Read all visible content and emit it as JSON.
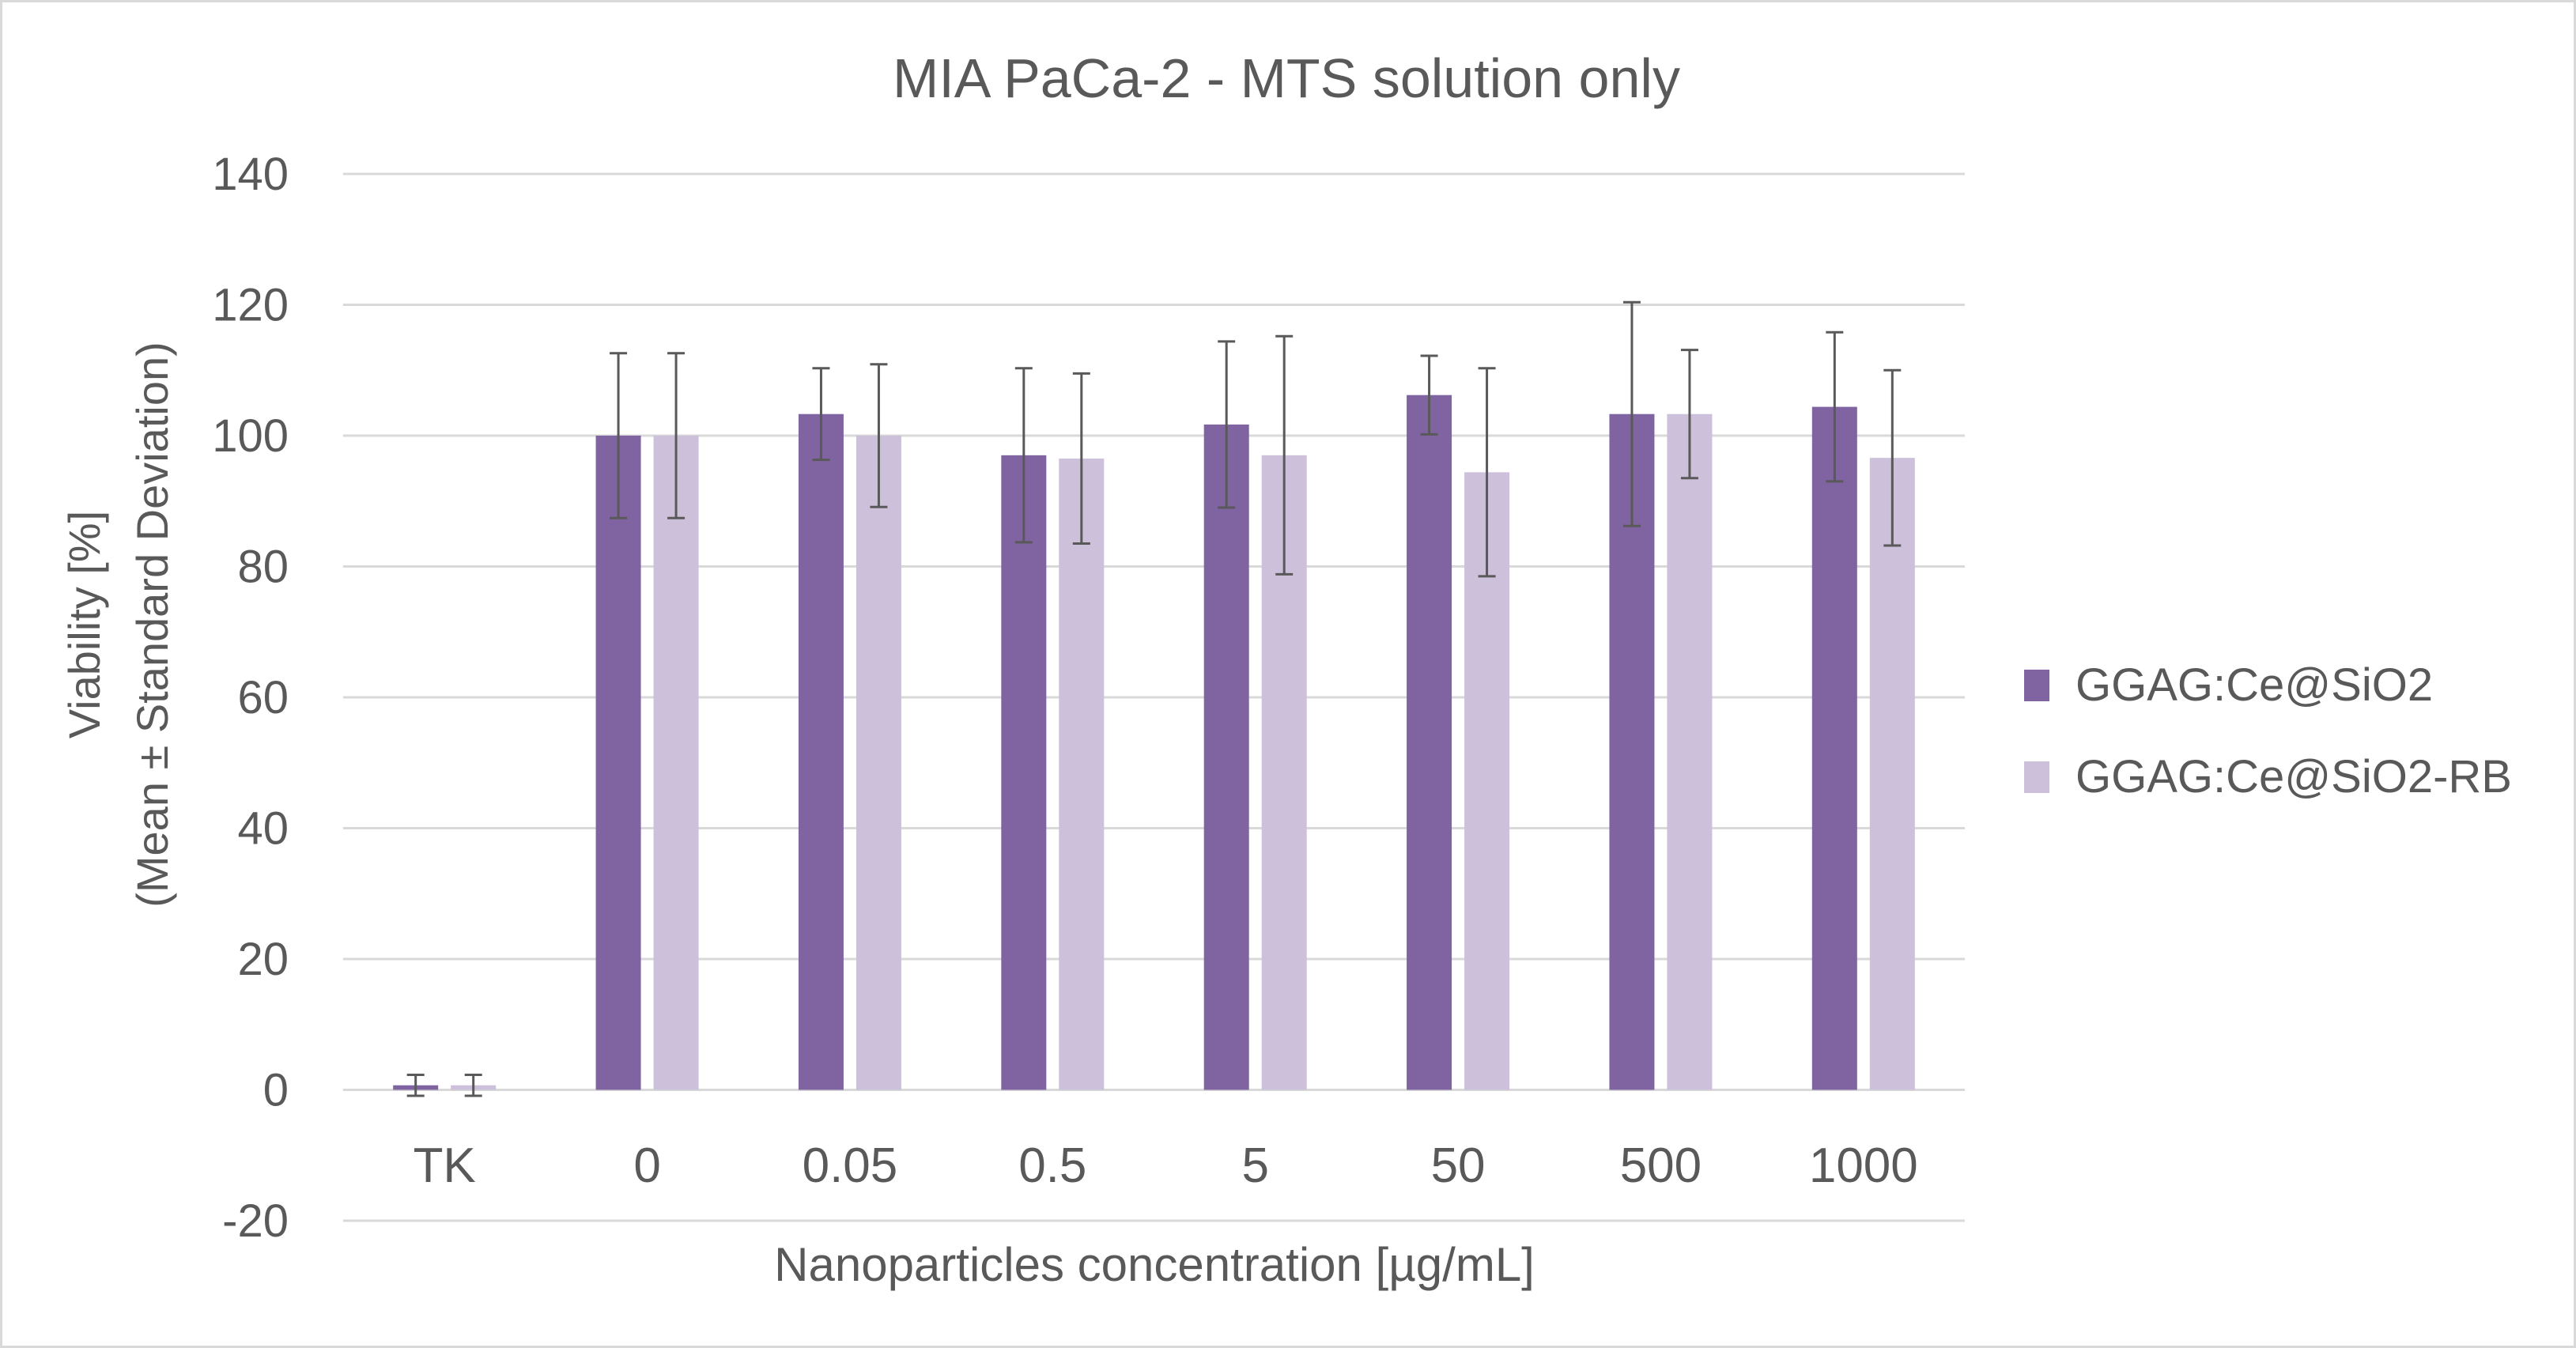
{
  "chart_data": {
    "type": "bar",
    "title": "MIA PaCa-2 - MTS solution only",
    "xlabel": "Nanoparticles concentration [µg/mL]",
    "ylabel_lines": [
      "Viability [%]",
      "(Mean ± Standard Deviation)"
    ],
    "categories": [
      "TK",
      "0",
      "0.05",
      "0.5",
      "5",
      "50",
      "500",
      "1000"
    ],
    "ylim": [
      -20,
      140
    ],
    "yticks": [
      -20,
      0,
      20,
      40,
      60,
      80,
      100,
      120,
      140
    ],
    "grid": true,
    "legend_position": "right",
    "series": [
      {
        "name": "GGAG:Ce@SiO2",
        "color": "#8064A2",
        "values": [
          0.7,
          100,
          103.3,
          97.0,
          101.7,
          106.2,
          103.3,
          104.4
        ],
        "errors": [
          1.6,
          12.6,
          7.0,
          13.3,
          12.7,
          6.0,
          17.1,
          11.4
        ]
      },
      {
        "name": "GGAG:Ce@SiO2-RB",
        "color": "#CCC0DA",
        "values": [
          0.7,
          100,
          100,
          96.5,
          97.0,
          94.4,
          103.3,
          96.6
        ],
        "errors": [
          1.6,
          12.6,
          10.9,
          13.0,
          18.2,
          15.9,
          9.8,
          13.4
        ]
      }
    ]
  }
}
